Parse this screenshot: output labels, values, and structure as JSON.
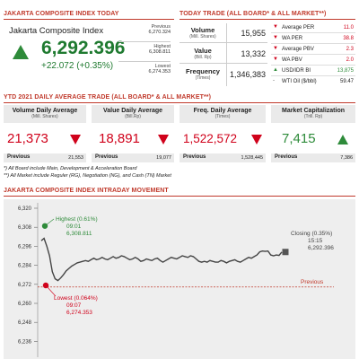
{
  "headers": {
    "jci_today": "JAKARTA COMPOSITE INDEX TODAY",
    "today_trade": "TODAY TRADE (ALL BOARD* & ALL MARKET**)",
    "ytd": "YTD 2021 DAILY AVERAGE TRADE (ALL BOARD* & ALL MARKET**)",
    "intraday": "JAKARTA COMPOSITE INDEX INTRADAY MOVEMENT"
  },
  "jci": {
    "name": "Jakarta Composite Index",
    "value": "6,292.396",
    "change": "+22.072 (+0.35%)",
    "previous_label": "Previous",
    "previous_value": "6,270.324",
    "highest_label": "Highest",
    "highest_value": "6,308.811",
    "lowest_label": "Lowest",
    "lowest_value": "6,274.353",
    "colors": {
      "up": "#2e8b3a"
    }
  },
  "today_trade": [
    {
      "label": "Volume",
      "sub": "(Mill. Shares)",
      "value": "15,955"
    },
    {
      "label": "Value",
      "sub": "(Bill. Rp)",
      "value": "13,332"
    },
    {
      "label": "Frequency",
      "sub": "(Times)",
      "value": "1,346,383"
    }
  ],
  "indicators": [
    {
      "marker": "▼",
      "marker_color": "#d0021b",
      "label": "Average PER",
      "value": "11.0",
      "value_color": "#d0021b"
    },
    {
      "marker": "▼",
      "marker_color": "#d0021b",
      "label": "WA PER",
      "value": "38.8",
      "value_color": "#d0021b"
    },
    {
      "marker": "▼",
      "marker_color": "#d0021b",
      "label": "Average PBV",
      "value": "2.3",
      "value_color": "#d0021b"
    },
    {
      "marker": "▼",
      "marker_color": "#d0021b",
      "label": "WA PBV",
      "value": "2.0",
      "value_color": "#d0021b"
    },
    {
      "marker": "▲",
      "marker_color": "#2e8b3a",
      "label": "USD/IDR BI",
      "value": "13,875",
      "value_color": "#2e8b3a"
    },
    {
      "marker": "-",
      "marker_color": "#555555",
      "label": "WTI Oil ($/bbl)",
      "value": "59.47",
      "value_color": "#222222"
    }
  ],
  "ytd_stats": [
    {
      "title": "Volume Daily Average",
      "sub": "(Mill. Shares)",
      "value": "21,373",
      "direction": "down",
      "previous_label": "Previous",
      "previous_value": "21,553",
      "value_color": "#d0021b"
    },
    {
      "title": "Value Daily Average",
      "sub": "(Bill.Rp)",
      "value": "18,891",
      "direction": "down",
      "previous_label": "Previous",
      "previous_value": "19,077",
      "value_color": "#d0021b"
    },
    {
      "title": "Freq. Daily Average",
      "sub": "(Times)",
      "value": "1,522,572",
      "direction": "down",
      "previous_label": "Previous",
      "previous_value": "1,528,445",
      "value_color": "#d0021b"
    },
    {
      "title": "Market Capitalization",
      "sub": "(Trill. Rp)",
      "value": "7,415",
      "direction": "up",
      "previous_label": "Previous",
      "previous_value": "7,386",
      "value_color": "#2e8b3a"
    }
  ],
  "notes": [
    "*) All Board include Main, Development & Acceleration Board",
    "**) All Market include Reguler (RG), Negotiation (NG), and Cash (TN) Market"
  ],
  "chart_data": {
    "type": "line",
    "title": "",
    "y_ticks": [
      6320,
      6308,
      6296,
      6284,
      6272,
      6260,
      6248,
      6236
    ],
    "y_tick_labels": [
      "6,320",
      "6,308",
      "6,296",
      "6,284",
      "6,272",
      "6,260",
      "6,248",
      "6,236"
    ],
    "ylim": [
      6230,
      6324
    ],
    "previous": {
      "label": "Previous",
      "value": 6270.324
    },
    "highest": {
      "label": "Highest (0.61%)",
      "time": "09:01",
      "value_text": "6,308.811",
      "value": 6308.811
    },
    "lowest": {
      "label": "Lowest (0.064%)",
      "time": "09:07",
      "value_text": "6,274.353",
      "value": 6274.353
    },
    "closing": {
      "label": "Closing (0.35%)",
      "time": "15:15",
      "value_text": "6,292.396",
      "value": 6292.396
    },
    "series": [
      {
        "values": [
          6299.5,
          6301.0,
          6296.0,
          6290.0,
          6280.0,
          6275.5,
          6274.4,
          6276.0,
          6278.0,
          6280.5,
          6282.0,
          6283.5,
          6284.5,
          6285.5,
          6286.0,
          6286.5,
          6287.0,
          6286.5,
          6287.5,
          6288.5,
          6287.5,
          6288.0,
          6289.0,
          6288.0,
          6287.5,
          6288.5,
          6289.5,
          6288.5,
          6289.0,
          6290.0,
          6289.5,
          6288.5,
          6287.5,
          6288.0,
          6289.0,
          6288.0,
          6286.5,
          6287.0,
          6288.0,
          6287.5,
          6287.0,
          6288.0,
          6288.5,
          6287.0,
          6286.0,
          6287.0,
          6288.0,
          6289.0,
          6288.5,
          6288.0,
          6289.0,
          6290.0,
          6289.5,
          6289.0,
          6290.0,
          6289.5,
          6288.0,
          6286.5,
          6286.0,
          6286.5,
          6286.0,
          6287.0,
          6286.5,
          6286.0,
          6286.0,
          6287.0,
          6286.5,
          6285.5,
          6286.5,
          6287.0,
          6287.5,
          6286.5,
          6286.0,
          6287.0,
          6288.0,
          6289.0,
          6288.5,
          6289.5,
          6290.5,
          6292.5,
          6293.0,
          6292.8,
          6293.0,
          6290.5,
          6290.0,
          6290.5,
          6290.2,
          6292.4
        ]
      }
    ]
  }
}
